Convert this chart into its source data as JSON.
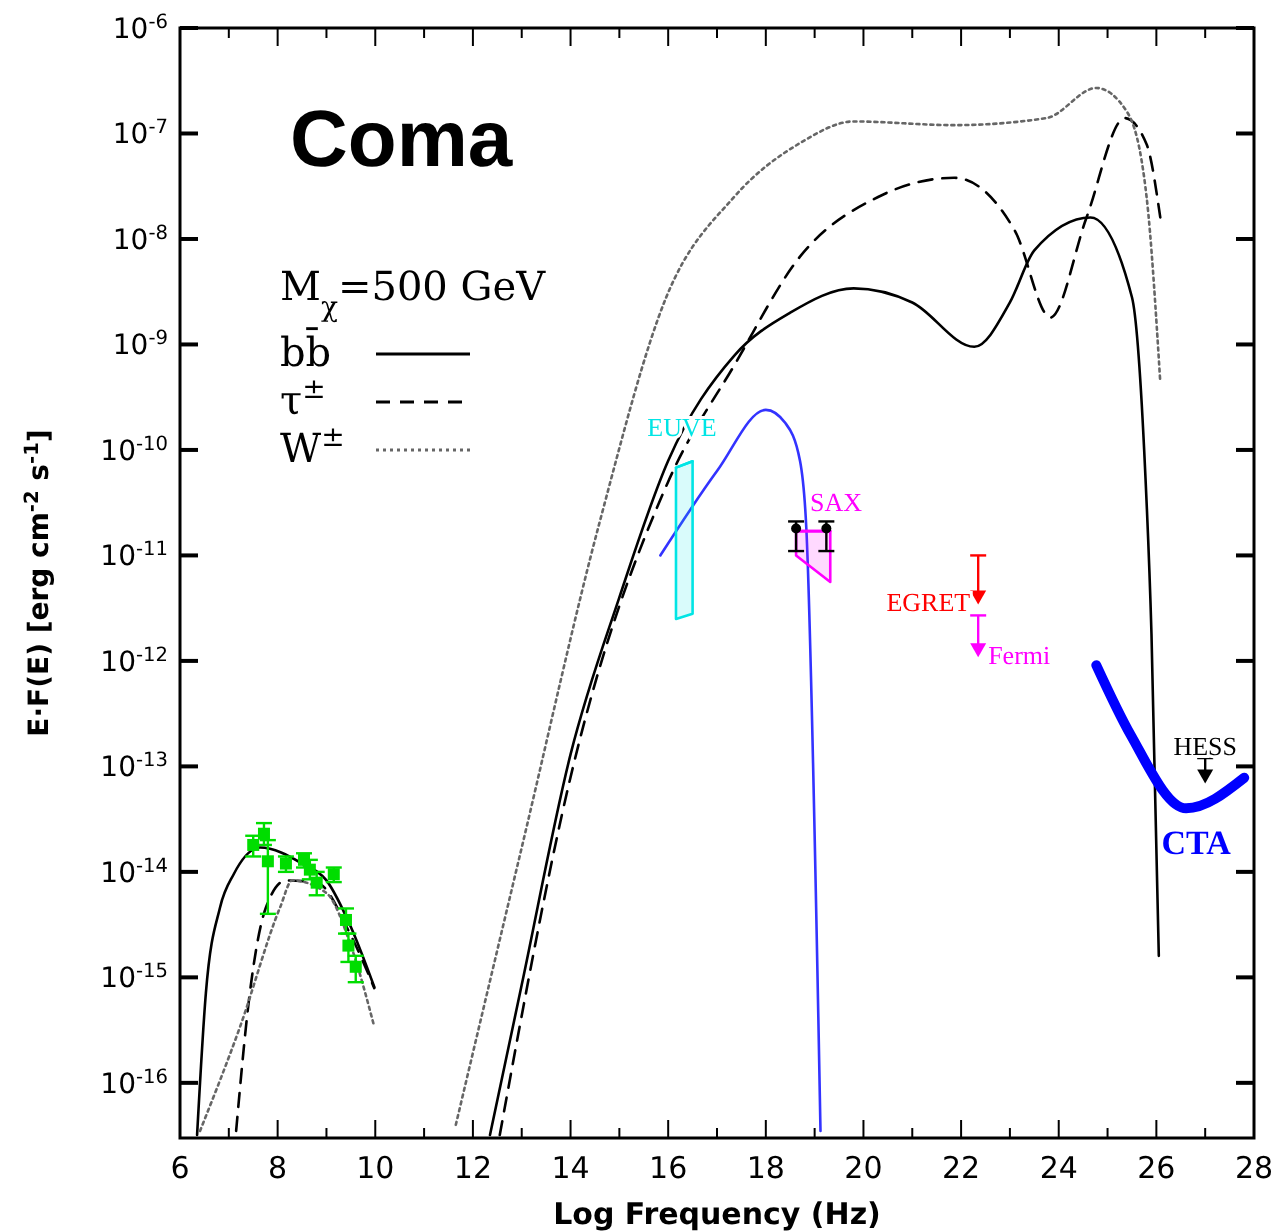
{
  "chart_data": {
    "type": "line",
    "title": "Coma",
    "xlabel": "Log Frequency (Hz)",
    "ylabel": "E·F(E) [erg cm$^{-2}$ s$^{-1}$]",
    "legend_title": "M$_{χ}$=500 GeV",
    "legend": "top left",
    "log": "y",
    "xlim": [
      6,
      28
    ],
    "ylim": [
      3e-17,
      1e-06
    ],
    "xticks": [
      6,
      {
        "value": 7,
        "label": null
      },
      8,
      {
        "value": 9,
        "label": null
      },
      10,
      {
        "value": 11,
        "label": null
      },
      12,
      {
        "value": 13,
        "label": null
      },
      14,
      {
        "value": 15,
        "label": null
      },
      16,
      {
        "value": 17,
        "label": null
      },
      18,
      {
        "value": 19,
        "label": null
      },
      20,
      {
        "value": 21,
        "label": null
      },
      22,
      {
        "value": 23,
        "label": null
      },
      24,
      {
        "value": 25,
        "label": null
      },
      26,
      {
        "value": 27,
        "label": null
      },
      28
    ],
    "yticks": [
      {
        "value": 1e-16,
        "label": "10$^{-16}$"
      },
      {
        "value": 1e-15,
        "label": "10$^{-15}$"
      },
      {
        "value": 1e-14,
        "label": "10$^{-14}$"
      },
      {
        "value": 1e-13,
        "label": "10$^{-13}$"
      },
      {
        "value": 1e-12,
        "label": "10$^{-12}$"
      },
      {
        "value": 1e-11,
        "label": "10$^{-11}$"
      },
      {
        "value": 1e-10,
        "label": "10$^{-10}$"
      },
      {
        "value": 1e-09,
        "label": "10$^{-9}$"
      },
      {
        "value": 1e-08,
        "label": "10$^{-8}$"
      },
      {
        "value": 1e-07,
        "label": "10$^{-7}$"
      },
      {
        "value": 1e-06,
        "label": "10$^{-6}$"
      }
    ],
    "series": [
      {
        "name": "bb̄",
        "line_style": "solid",
        "color": "#000000",
        "x": [
          6.35,
          6.53,
          6.82,
          7.1,
          7.64,
          8.5,
          9.0,
          9.5,
          9.98,
          11,
          12.35,
          13,
          14,
          15,
          16,
          17.35,
          18.5,
          19.8,
          21,
          22.27,
          23,
          23.5,
          24.65,
          25.5,
          25.75,
          25.9,
          26.05
        ],
        "values": [
          3.2e-17,
          7.1e-16,
          4.6e-15,
          9.5e-15,
          1.7e-14,
          1.2e-14,
          8.3e-15,
          3e-15,
          8.1e-16,
          null,
          3.2e-17,
          8.5e-16,
          1.3e-13,
          4e-12,
          7.9e-11,
          7.8e-10,
          2e-09,
          3.4e-09,
          2.5e-09,
          9.5e-10,
          2.5e-09,
          7.8e-09,
          1.6e-08,
          2.8e-09,
          1e-10,
          1.8e-12,
          1.6e-15
        ]
      },
      {
        "name": "τ$^{±}$",
        "line_style": "dashed",
        "color": "#000000",
        "x": [
          7.15,
          7.43,
          7.76,
          8.17,
          8.8,
          9.5,
          9.98,
          11,
          12.55,
          14,
          16,
          17.35,
          18.7,
          20.3,
          21.86,
          23.1,
          23.83,
          24.57,
          25.35,
          25.8,
          26.08
        ],
        "values": [
          3.5e-17,
          7.1e-16,
          4.6e-15,
          8.3e-15,
          7.9e-15,
          2.5e-15,
          7.9e-16,
          null,
          3.2e-17,
          7.9e-14,
          5e-11,
          6.3e-10,
          6.8e-09,
          2.5e-08,
          3.8e-08,
          1.2e-08,
          1.8e-09,
          1.6e-08,
          1.4e-07,
          7.9e-08,
          1.6e-08
        ]
      },
      {
        "name": "W$^{±}$",
        "line_style": "dotted",
        "color": "#666666",
        "x": [
          6.41,
          7.23,
          8.05,
          8.3,
          9.0,
          9.5,
          9.98,
          11,
          11.65,
          13,
          14.6,
          15.96,
          17.35,
          18.7,
          19.8,
          21.86,
          23.75,
          24.77,
          25.4,
          25.8,
          26.08
        ],
        "values": [
          3.5e-17,
          3.4e-16,
          4.6e-15,
          8.3e-15,
          6.3e-15,
          2e-15,
          3.4e-16,
          null,
          4e-17,
          1.7e-14,
          2.1e-11,
          2.8e-09,
          2.5e-08,
          8.1e-08,
          1.3e-07,
          1.2e-07,
          1.4e-07,
          2.7e-07,
          1.6e-07,
          2.5e-08,
          4.4e-10
        ]
      },
      {
        "color": "#3333ff",
        "x": [
          15.84,
          17,
          18,
          18.4,
          18.7,
          18.83,
          19.12
        ],
        "values": [
          1e-11,
          6.3e-11,
          2.4e-10,
          1.8e-10,
          7.9e-11,
          1.8e-11,
          3.5e-17
        ]
      },
      {
        "type": "scatter",
        "marker": "square",
        "color": "#00dd00",
        "x": [
          7.5,
          7.72,
          7.8,
          8.17,
          8.54,
          8.66,
          8.8,
          9.15,
          9.4,
          9.45,
          9.6
        ],
        "values": [
          1.8e-14,
          2.3e-14,
          1.26e-14,
          1.2e-14,
          1.3e-14,
          1.05e-14,
          7.9e-15,
          9.5e-15,
          3.5e-15,
          2e-15,
          1.26e-15
        ],
        "errors": [
          [
            1.4e-14,
            2.2e-14
          ],
          [
            1.8e-14,
            2.9e-14
          ],
          [
            4e-15,
            2e-14
          ],
          [
            1e-14,
            1.4e-14
          ],
          [
            1.1e-14,
            1.5e-14
          ],
          [
            8.5e-15,
            1.3e-14
          ],
          [
            6e-15,
            1e-14
          ],
          [
            8e-15,
            1.1e-14
          ],
          [
            2.6e-15,
            4.5e-15
          ],
          [
            1.4e-15,
            2.6e-15
          ],
          [
            9e-16,
            1.6e-15
          ]
        ]
      },
      {
        "name": "EUVE",
        "color": "#00e5e5",
        "x": [
          16.16,
          16.5
        ],
        "values": [
          6.8e-11,
          7.8e-11
        ],
        "lower": [
          2.5e-12,
          2.8e-12
        ],
        "upper": [
          6.8e-11,
          7.8e-11
        ]
      },
      {
        "name": "SAX",
        "color": "#ff00ff",
        "x": [
          18.62,
          19.32
        ],
        "values": [
          1.7e-11,
          1.7e-11
        ],
        "lower": [
          1e-11,
          5.6e-12
        ],
        "upper": [
          1.7e-11,
          1.7e-11
        ]
      },
      {
        "type": "scatter",
        "marker": "circle",
        "color": "#000000",
        "x": [
          18.62,
          19.24
        ],
        "values": [
          1.8e-11,
          1.8e-11
        ],
        "errors": [
          [
            1.1e-11,
            2.1e-11
          ],
          [
            1.1e-11,
            2.1e-11
          ]
        ]
      },
      {
        "name": "EGRET",
        "type": "scatter",
        "marker": "triangle",
        "color": "#ff0000",
        "x": [
          22.35
        ],
        "values": [
          4e-12
        ],
        "errors": [
          [
            4e-12,
            1e-11
          ]
        ]
      },
      {
        "name": "Fermi",
        "type": "scatter",
        "marker": "triangle",
        "color": "#ff00ff",
        "x": [
          22.35
        ],
        "values": [
          1.26e-12
        ],
        "errors": [
          [
            1.26e-12,
            2.7e-12
          ]
        ]
      },
      {
        "name": "HESS",
        "type": "scatter",
        "marker": "triangle",
        "color": "#000000",
        "x": [
          27.0
        ],
        "values": [
          8e-14
        ],
        "errors": [
          [
            8e-14,
            1.2e-13
          ]
        ]
      },
      {
        "name": "CTA",
        "color": "#0000ff",
        "x": [
          24.77,
          25.47,
          26.61,
          27.8
        ],
        "values": [
          9.1e-13,
          2e-13,
          4e-14,
          7.8e-14
        ]
      }
    ]
  }
}
